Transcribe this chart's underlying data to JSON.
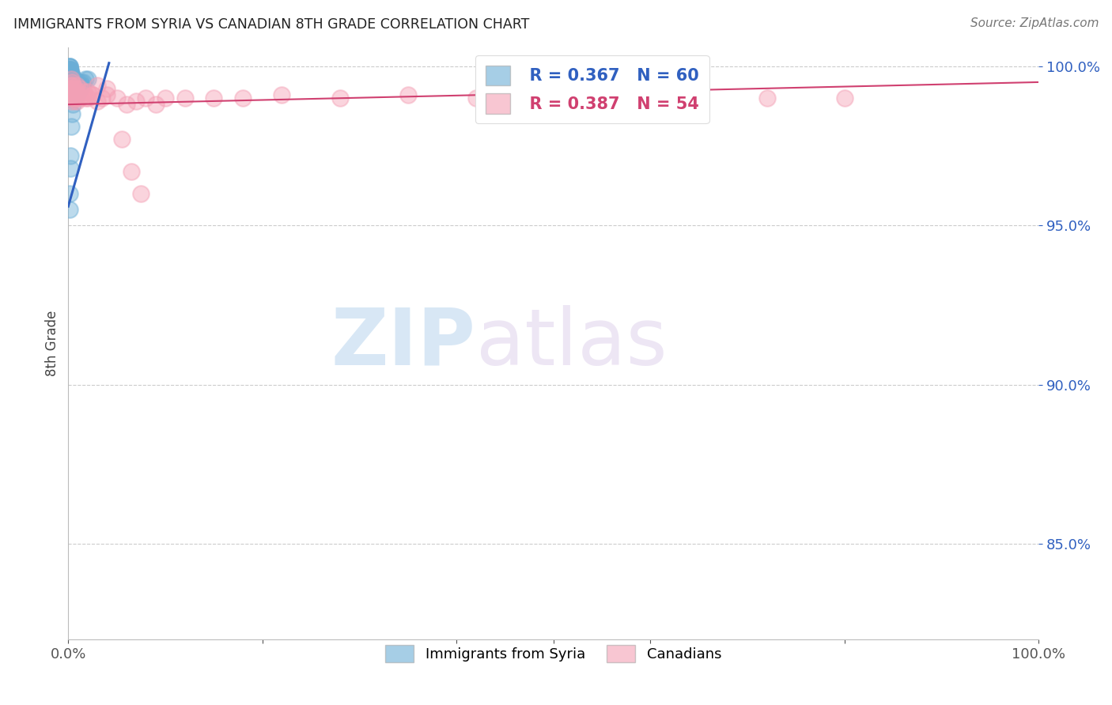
{
  "title": "IMMIGRANTS FROM SYRIA VS CANADIAN 8TH GRADE CORRELATION CHART",
  "source": "Source: ZipAtlas.com",
  "ylabel": "8th Grade",
  "xlim": [
    0.0,
    1.0
  ],
  "ylim": [
    0.82,
    1.006
  ],
  "ytick_labels": [
    "85.0%",
    "90.0%",
    "95.0%",
    "100.0%"
  ],
  "ytick_values": [
    0.85,
    0.9,
    0.95,
    1.0
  ],
  "xtick_positions": [
    0.0,
    0.2,
    0.4,
    0.5,
    0.6,
    0.8,
    1.0
  ],
  "xtick_labels_show": {
    "0.0": "0.0%",
    "1.0": "100.0%"
  },
  "legend_blue_r": "0.367",
  "legend_blue_n": "60",
  "legend_pink_r": "0.387",
  "legend_pink_n": "54",
  "color_blue_scatter": "#6baed6",
  "color_pink_scatter": "#f4a0b5",
  "color_blue_line": "#3060c0",
  "color_pink_line": "#d04070",
  "color_blue_text": "#3060c0",
  "color_pink_text": "#d04070",
  "watermark_zip": "ZIP",
  "watermark_atlas": "atlas",
  "grid_color": "#cccccc",
  "spine_color": "#bbbbbb",
  "blue_x": [
    0.001,
    0.001,
    0.001,
    0.001,
    0.001,
    0.001,
    0.001,
    0.001,
    0.001,
    0.001,
    0.002,
    0.002,
    0.002,
    0.002,
    0.002,
    0.002,
    0.002,
    0.002,
    0.002,
    0.002,
    0.003,
    0.003,
    0.003,
    0.003,
    0.003,
    0.003,
    0.003,
    0.004,
    0.004,
    0.004,
    0.004,
    0.004,
    0.005,
    0.005,
    0.005,
    0.006,
    0.006,
    0.006,
    0.007,
    0.007,
    0.008,
    0.009,
    0.01,
    0.011,
    0.013,
    0.015,
    0.018,
    0.02,
    0.001,
    0.001,
    0.002,
    0.002,
    0.003,
    0.004,
    0.005,
    0.006,
    0.008,
    0.01,
    0.012,
    0.014
  ],
  "blue_y": [
    1.0,
    1.0,
    1.0,
    0.999,
    0.999,
    0.999,
    0.998,
    0.998,
    0.997,
    0.997,
    0.999,
    0.998,
    0.998,
    0.997,
    0.997,
    0.996,
    0.996,
    0.995,
    0.995,
    0.994,
    0.998,
    0.997,
    0.997,
    0.996,
    0.995,
    0.994,
    0.993,
    0.997,
    0.996,
    0.995,
    0.994,
    0.993,
    0.996,
    0.995,
    0.994,
    0.996,
    0.995,
    0.993,
    0.995,
    0.994,
    0.994,
    0.994,
    0.995,
    0.994,
    0.995,
    0.995,
    0.996,
    0.996,
    0.96,
    0.955,
    0.972,
    0.968,
    0.981,
    0.985,
    0.988,
    0.99,
    0.991,
    0.992,
    0.993,
    0.994
  ],
  "pink_x": [
    0.001,
    0.001,
    0.002,
    0.002,
    0.003,
    0.003,
    0.004,
    0.004,
    0.005,
    0.006,
    0.007,
    0.008,
    0.009,
    0.01,
    0.012,
    0.015,
    0.018,
    0.02,
    0.025,
    0.03,
    0.035,
    0.04,
    0.05,
    0.06,
    0.07,
    0.08,
    0.09,
    0.1,
    0.12,
    0.15,
    0.18,
    0.22,
    0.28,
    0.35,
    0.42,
    0.5,
    0.58,
    0.65,
    0.72,
    0.8,
    0.003,
    0.004,
    0.005,
    0.007,
    0.009,
    0.012,
    0.016,
    0.02,
    0.025,
    0.03,
    0.04,
    0.055,
    0.065,
    0.075
  ],
  "pink_y": [
    0.993,
    0.991,
    0.994,
    0.991,
    0.993,
    0.99,
    0.992,
    0.989,
    0.991,
    0.99,
    0.991,
    0.99,
    0.989,
    0.991,
    0.99,
    0.991,
    0.99,
    0.99,
    0.991,
    0.989,
    0.99,
    0.991,
    0.99,
    0.988,
    0.989,
    0.99,
    0.988,
    0.99,
    0.99,
    0.99,
    0.99,
    0.991,
    0.99,
    0.991,
    0.99,
    0.99,
    0.991,
    0.99,
    0.99,
    0.99,
    0.996,
    0.995,
    0.994,
    0.993,
    0.994,
    0.993,
    0.992,
    0.992,
    0.991,
    0.994,
    0.993,
    0.977,
    0.967,
    0.96
  ]
}
